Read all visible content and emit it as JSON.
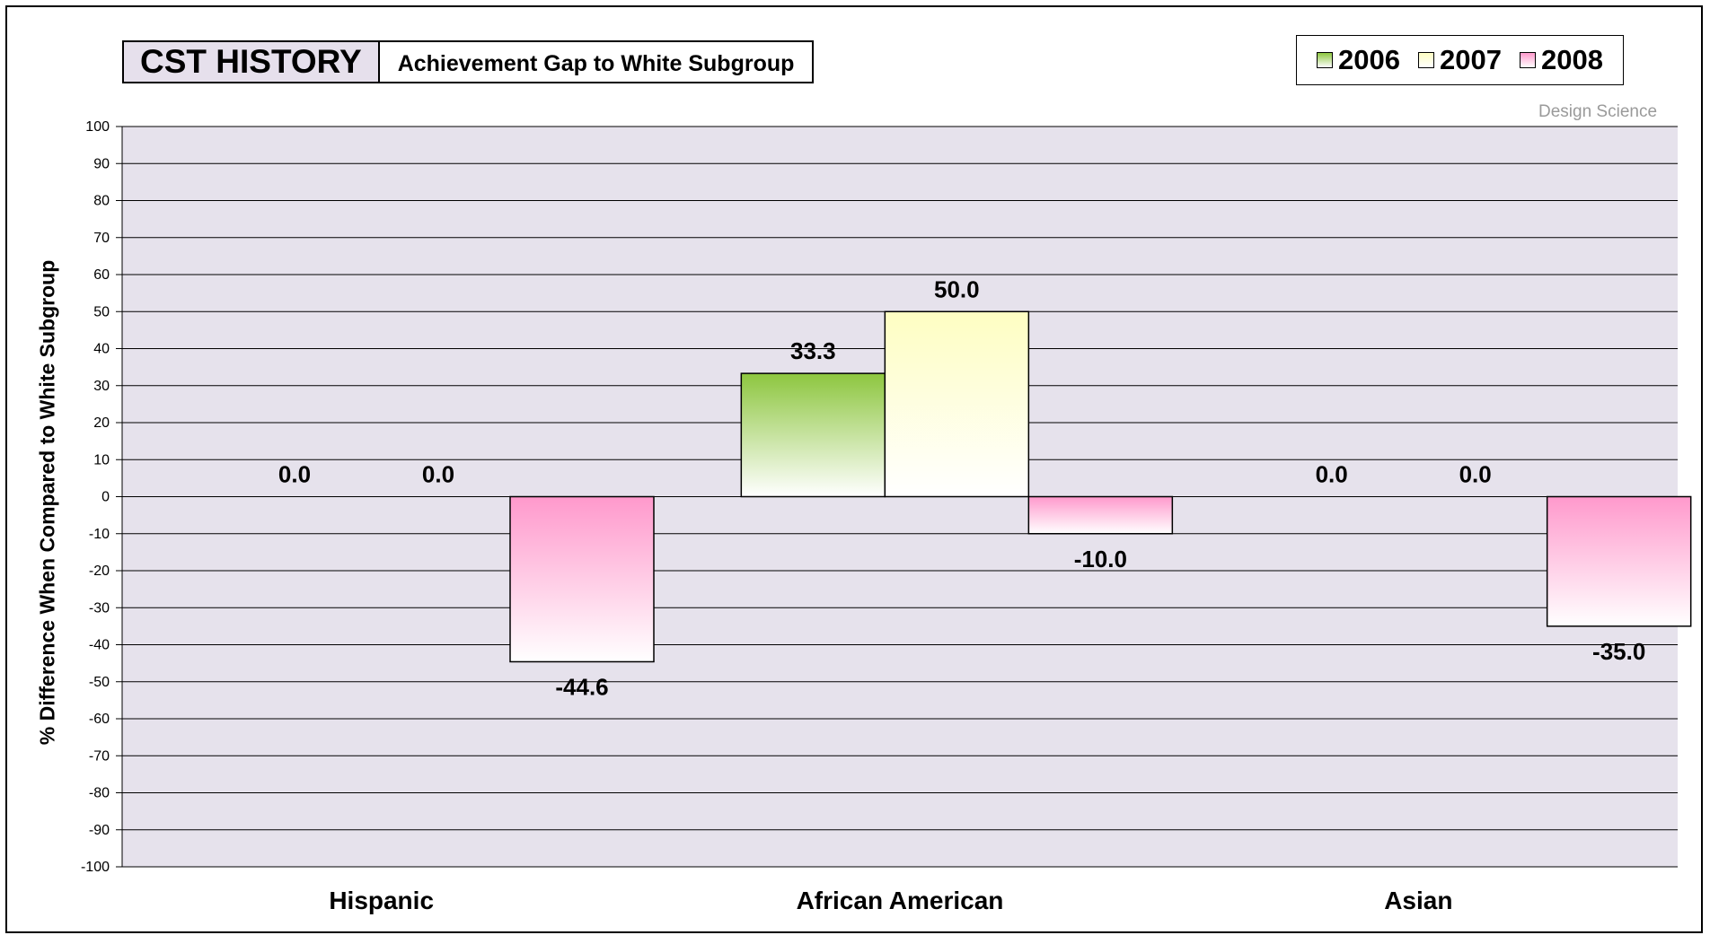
{
  "header": {
    "title": "CST HISTORY",
    "subtitle": "Achievement Gap to White Subgroup"
  },
  "watermark": "Design Science",
  "colors": {
    "plot_background": "#e6e2ec",
    "2006": "#8dc63f",
    "2007": "#fefec2",
    "2008": "#ff99cc"
  },
  "chart_data": {
    "type": "bar",
    "title": "CST HISTORY",
    "subtitle": "Achievement Gap to White Subgroup",
    "xlabel": "",
    "ylabel": "% Difference When Compared to White Subgroup",
    "ylim": [
      -100,
      100
    ],
    "yticks": [
      100,
      90,
      80,
      70,
      60,
      50,
      40,
      30,
      20,
      10,
      0,
      -10,
      -20,
      -30,
      -40,
      -50,
      -60,
      -70,
      -80,
      -90,
      -100
    ],
    "grid": true,
    "legend_position": "top-right",
    "categories": [
      "Hispanic",
      "African American",
      "Asian"
    ],
    "series": [
      {
        "name": "2006",
        "values": [
          0.0,
          33.3,
          0.0
        ],
        "labels": [
          "0.0",
          "33.3",
          "0.0"
        ]
      },
      {
        "name": "2007",
        "values": [
          0.0,
          50.0,
          0.0
        ],
        "labels": [
          "0.0",
          "50.0",
          "0.0"
        ]
      },
      {
        "name": "2008",
        "values": [
          -44.6,
          -10.0,
          -35.0
        ],
        "labels": [
          "-44.6",
          "-10.0",
          "-35.0"
        ]
      }
    ]
  }
}
